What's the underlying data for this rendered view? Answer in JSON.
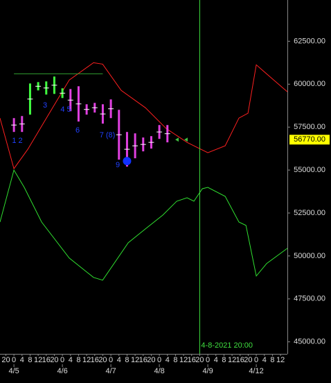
{
  "chart_data": {
    "type": "ohlc",
    "ylim": [
      44300,
      64900
    ],
    "xlim": [
      -6.9,
      135.4
    ],
    "yticks": [
      {
        "value": 45000,
        "label": "45000.00"
      },
      {
        "value": 47500,
        "label": "47500.00"
      },
      {
        "value": 50000,
        "label": "50000.00"
      },
      {
        "value": 52500,
        "label": "52500.00"
      },
      {
        "value": 55000,
        "label": "55000.00"
      },
      {
        "value": 57500,
        "label": "57500.00"
      },
      {
        "value": 60000,
        "label": "60000.00"
      },
      {
        "value": 62500,
        "label": "62500.00"
      }
    ],
    "xticks": [
      {
        "value": -4,
        "label": "20"
      },
      {
        "value": 0,
        "label": "0"
      },
      {
        "value": 4,
        "label": "4"
      },
      {
        "value": 8,
        "label": "8"
      },
      {
        "value": 12,
        "label": "12"
      },
      {
        "value": 16,
        "label": "16"
      },
      {
        "value": 20,
        "label": "20"
      },
      {
        "value": 24,
        "label": "0"
      },
      {
        "value": 28,
        "label": "4"
      },
      {
        "value": 32,
        "label": "8"
      },
      {
        "value": 36,
        "label": "12"
      },
      {
        "value": 40,
        "label": "16"
      },
      {
        "value": 44,
        "label": "20"
      },
      {
        "value": 48,
        "label": "0"
      },
      {
        "value": 52,
        "label": "4"
      },
      {
        "value": 56,
        "label": "8"
      },
      {
        "value": 60,
        "label": "12"
      },
      {
        "value": 64,
        "label": "16"
      },
      {
        "value": 68,
        "label": "20"
      },
      {
        "value": 72,
        "label": "0"
      },
      {
        "value": 76,
        "label": "4"
      },
      {
        "value": 80,
        "label": "8"
      },
      {
        "value": 84,
        "label": "12"
      },
      {
        "value": 88,
        "label": "16"
      },
      {
        "value": 92,
        "label": "20"
      },
      {
        "value": 96,
        "label": "0"
      },
      {
        "value": 100,
        "label": "4"
      },
      {
        "value": 104,
        "label": "8"
      },
      {
        "value": 108,
        "label": "12"
      },
      {
        "value": 112,
        "label": "16"
      },
      {
        "value": 116,
        "label": "20"
      },
      {
        "value": 120,
        "label": "0"
      },
      {
        "value": 124,
        "label": "4"
      },
      {
        "value": 128,
        "label": "8"
      },
      {
        "value": 132,
        "label": "12"
      }
    ],
    "date_ticks": [
      {
        "value": 0,
        "label": "4/5"
      },
      {
        "value": 24,
        "label": "4/6"
      },
      {
        "value": 48,
        "label": "4/7"
      },
      {
        "value": 72,
        "label": "4/8"
      },
      {
        "value": 96,
        "label": "4/9"
      },
      {
        "value": 120,
        "label": "4/12"
      }
    ],
    "bars": {
      "x": [
        0,
        4,
        8,
        12,
        16,
        20,
        24,
        28,
        32,
        36,
        40,
        44,
        48,
        52,
        56,
        60,
        64,
        68,
        72,
        76
      ],
      "high": [
        58024,
        58145,
        60040,
        60120,
        60161,
        60444,
        59758,
        59717,
        59879,
        58831,
        58911,
        58831,
        59113,
        58508,
        57218,
        57137,
        56895,
        56976,
        57621,
        57621
      ],
      "low": [
        57218,
        57218,
        58226,
        59637,
        59395,
        59435,
        59194,
        58427,
        57823,
        58226,
        58347,
        57702,
        58024,
        55605,
        55202,
        55686,
        56089,
        56250,
        56815,
        56613
      ],
      "colors": [
        "#e040e0",
        "#e040e0",
        "#40ff40",
        "#40ff40",
        "#40ff40",
        "#40ff40",
        "#40ff40",
        "#e040e0",
        "#e040e0",
        "#e040e0",
        "#e040e0",
        "#e040e0",
        "#e040e0",
        "#e040e0",
        "#e040e0",
        "#e040e0",
        "#e040e0",
        "#e040e0",
        "#e040e0",
        "#e040e0"
      ]
    },
    "lines": [
      {
        "color": "#ff2020",
        "x": [
          -6.9,
          0,
          6.9,
          17.1,
          27.4,
          39.4,
          43.9,
          53.1,
          65.1,
          75.4,
          85.7,
          96,
          104.6,
          111.4,
          115.9,
          120,
          128.6,
          135.4
        ],
        "values": [
          58024,
          55081,
          56210,
          58226,
          60242,
          61250,
          61169,
          59637,
          58629,
          57419,
          56613,
          56008,
          56412,
          58024,
          58307,
          61129,
          60242,
          59557
        ]
      },
      {
        "color": "#30e030",
        "x": [
          -6.9,
          0,
          5.1,
          13.7,
          27.4,
          39.4,
          43.9,
          56.6,
          65.1,
          73.7,
          80.6,
          85.7,
          89.1,
          93.3,
          96,
          104.6,
          111.4,
          114.9,
          120,
          125.1,
          135.4
        ],
        "values": [
          51976,
          55000,
          53993,
          51976,
          49880,
          48751,
          48589,
          50767,
          51573,
          52380,
          53186,
          53388,
          53186,
          53912,
          53993,
          53468,
          51976,
          51775,
          48832,
          49557,
          50444
        ]
      }
    ],
    "level": {
      "value": 60605,
      "x": [
        0,
        44
      ],
      "color": "#30a030"
    },
    "marker": {
      "x": 56,
      "y": 55525,
      "color": "#1030ff"
    },
    "last_price": {
      "value": 56770,
      "label": "56770.00"
    },
    "cursor": {
      "x": 92,
      "label": "4-8-2021 20:00",
      "color": "#40e040"
    },
    "annotations": [
      "1 2",
      "3",
      "4 5",
      "6",
      "7 (8)",
      "9"
    ]
  }
}
